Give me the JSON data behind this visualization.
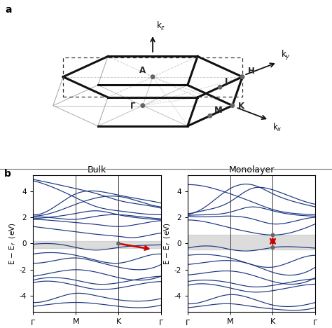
{
  "fig_width": 4.74,
  "fig_height": 4.68,
  "dpi": 100,
  "bg_color": "#ffffff",
  "panel_a_label": "a",
  "panel_b_label": "b",
  "bulk_title": "Bulk",
  "monolayer_title": "Monolayer",
  "ylim": [
    -5.2,
    5.2
  ],
  "yticks": [
    -4,
    -2,
    0,
    2,
    4
  ],
  "gray_band_bulk": [
    -0.35,
    0.2
  ],
  "gray_band_mono": [
    -0.45,
    0.65
  ],
  "band_color": "#1a3580",
  "band_lw": 0.85,
  "gray_dot_color": "#666666",
  "red_arrow_color": "#cc0000",
  "bz_lw_thick": 2.2,
  "bz_lw_thin": 0.7,
  "bz_col_main": "#111111",
  "bz_col_gray": "#aaaaaa",
  "bz_col_sym": "#aaaaaa",
  "bz_col_sym_dash": "#bbbbbb"
}
